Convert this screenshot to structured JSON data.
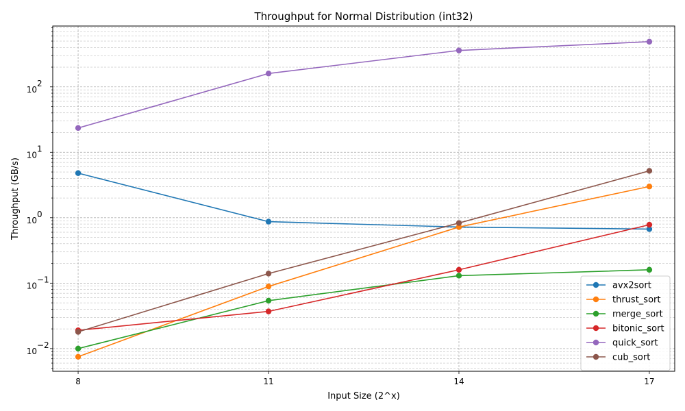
{
  "chart_data": {
    "type": "line",
    "title": "Throughput for Normal Distribution (int32)",
    "xlabel": "Input Size (2^x)",
    "ylabel": "Throughput (GB/s)",
    "x": [
      8,
      11,
      14,
      17
    ],
    "x_ticks": [
      "8",
      "11",
      "14",
      "17"
    ],
    "xlim": [
      7.6,
      17.4
    ],
    "y_scale": "log",
    "ylim": [
      0.0045,
      850
    ],
    "y_ticks": [
      {
        "value": 0.01,
        "base": "10",
        "exp": "−2"
      },
      {
        "value": 0.1,
        "base": "10",
        "exp": "−1"
      },
      {
        "value": 1,
        "base": "10",
        "exp": "0"
      },
      {
        "value": 10,
        "base": "10",
        "exp": "1"
      },
      {
        "value": 100,
        "base": "10",
        "exp": "2"
      }
    ],
    "grid": true,
    "legend_position": "bottom-right",
    "series": [
      {
        "name": "avx2sort",
        "color": "#1f77b4",
        "values": [
          4.8,
          0.87,
          0.72,
          0.67
        ]
      },
      {
        "name": "thrust_sort",
        "color": "#ff7f0e",
        "values": [
          0.0075,
          0.089,
          0.72,
          3.0
        ]
      },
      {
        "name": "merge_sort",
        "color": "#2ca02c",
        "values": [
          0.01,
          0.054,
          0.13,
          0.16
        ]
      },
      {
        "name": "bitonic_sort",
        "color": "#d62728",
        "values": [
          0.019,
          0.037,
          0.16,
          0.78
        ]
      },
      {
        "name": "quick_sort",
        "color": "#9467bd",
        "values": [
          23.5,
          160,
          360,
          490
        ]
      },
      {
        "name": "cub_sort",
        "color": "#8c564b",
        "values": [
          0.018,
          0.14,
          0.83,
          5.2
        ]
      }
    ]
  }
}
